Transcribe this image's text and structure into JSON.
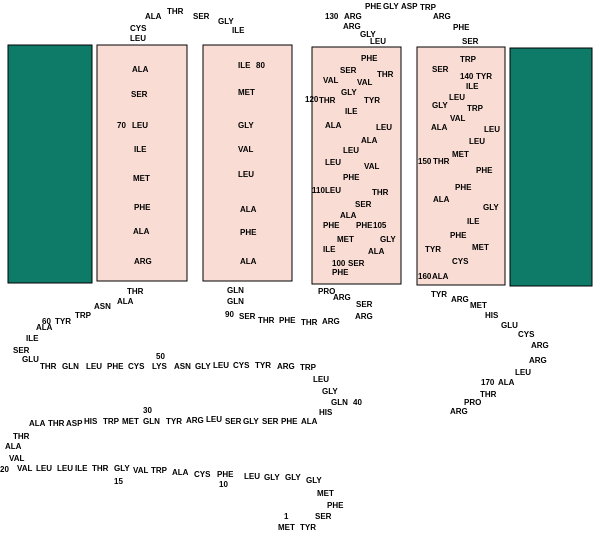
{
  "labels": [
    "ALA",
    "THR",
    "SER",
    "CYS",
    "LEU",
    "GLY",
    "ILE",
    "130",
    "ARG",
    "PHE",
    "GLY",
    "ASP",
    "TRP",
    "ARG",
    "GLY",
    "LEU",
    "ARG",
    "PHE",
    "SER",
    "ALA",
    "SER",
    "70",
    "LEU",
    "ILE",
    "MET",
    "PHE",
    "ALA",
    "ARG",
    "ILE",
    "80",
    "MET",
    "GLY",
    "VAL",
    "LEU",
    "ALA",
    "PHE",
    "ALA",
    "PHE",
    "SER",
    "THR",
    "VAL",
    "VAL",
    "120",
    "THR",
    "GLY",
    "TYR",
    "ILE",
    "ALA",
    "LEU",
    "ALA",
    "LEU",
    "VAL",
    "LEU",
    "PHE",
    "110",
    "LEU",
    "THR",
    "SER",
    "ALA",
    "PHE",
    "PHE",
    "105",
    "MET",
    "GLY",
    "ILE",
    "ALA",
    "100",
    "SER",
    "PHE",
    "TRP",
    "SER",
    "140",
    "TYR",
    "ILE",
    "LEU",
    "GLY",
    "TRP",
    "VAL",
    "ALA",
    "LEU",
    "LEU",
    "150",
    "THR",
    "MET",
    "PHE",
    "PHE",
    "ALA",
    "GLY",
    "ILE",
    "PHE",
    "TYR",
    "MET",
    "CYS",
    "160",
    "ALA",
    "THR",
    "ALA",
    "ASN",
    "TRP",
    "60",
    "TYR",
    "ALA",
    "ILE",
    "SER",
    "GLU",
    "THR",
    "GLN",
    "LEU",
    "PHE",
    "CYS",
    "50",
    "LYS",
    "ASN",
    "GLY",
    "LEU",
    "CYS",
    "TYR",
    "ARG",
    "TRP",
    "LEU",
    "GLY",
    "GLN",
    "40",
    "HIS",
    "ALA",
    "PHE",
    "SER",
    "GLY",
    "SER",
    "LEU",
    "ARG",
    "TYR",
    "GLN",
    "30",
    "MET",
    "TRP",
    "HIS",
    "ASP",
    "THR",
    "ALA",
    "THR",
    "ALA",
    "VAL",
    "20",
    "VAL",
    "LEU",
    "LEU",
    "ILE",
    "THR",
    "GLY",
    "15",
    "VAL",
    "TRP",
    "ALA",
    "CYS",
    "PHE",
    "10",
    "LEU",
    "GLY",
    "GLY",
    "GLY",
    "MET",
    "PHE",
    "SER",
    "1",
    "MET",
    "TYR",
    "GLN",
    "GLN",
    "90",
    "SER",
    "THR",
    "PHE",
    "THR",
    "ARG",
    "PRO",
    "ARG",
    "SER",
    "ARG",
    "TYR",
    "ARG",
    "MET",
    "HIS",
    "GLU",
    "CYS",
    "ARG",
    "ARG",
    "LEU",
    "170",
    "ALA",
    "THR",
    "PRO",
    "ARG"
  ]
}
